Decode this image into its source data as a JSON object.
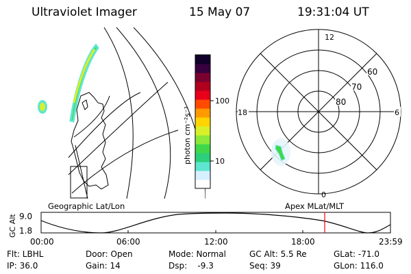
{
  "header": {
    "title": "Ultraviolet Imager",
    "date": "15 May 07",
    "time": "19:31:04 UT"
  },
  "geo_panel": {
    "label": "Geographic Lat/Lon"
  },
  "polar_panel": {
    "label": "Apex MLat/MLT",
    "lat_labels": [
      "60",
      "70",
      "80"
    ],
    "mlt_labels": {
      "top": "12",
      "left": "18",
      "right": "6",
      "bottom": "0"
    }
  },
  "colorbar": {
    "unit_label": "photon cm⁻²s⁻¹",
    "ticks": [
      "100",
      "10"
    ],
    "scale": "log",
    "colors": [
      "#ffffff",
      "#d6f0ff",
      "#5fe6d0",
      "#2ccf7a",
      "#3fd84a",
      "#8ce83a",
      "#d9ef2a",
      "#ffd400",
      "#ff9a00",
      "#ff4a00",
      "#e8001a",
      "#b0001e",
      "#7a0030",
      "#38003e",
      "#10002a"
    ]
  },
  "altitude_plot": {
    "ylabel": "GC Alt",
    "ytick_top": "9.0",
    "ytick_bottom": "1.8",
    "xticks": [
      "00:00",
      "06:00",
      "12:00",
      "18:00",
      "23:59"
    ],
    "marker_time": "19:31",
    "marker_color": "#ff0000"
  },
  "info": {
    "flt": "Flt: LBHL",
    "ip": "IP: 36.0",
    "door": "Door: Open",
    "gain": "Gain: 14",
    "mode": "Mode: Normal",
    "dsp": "Dsp:    -9.3",
    "gcalt": "GC Alt: 5.5 Re",
    "seq": "Seq: 39",
    "glat": "GLat: -71.0",
    "glon": "GLon: 116.0"
  }
}
